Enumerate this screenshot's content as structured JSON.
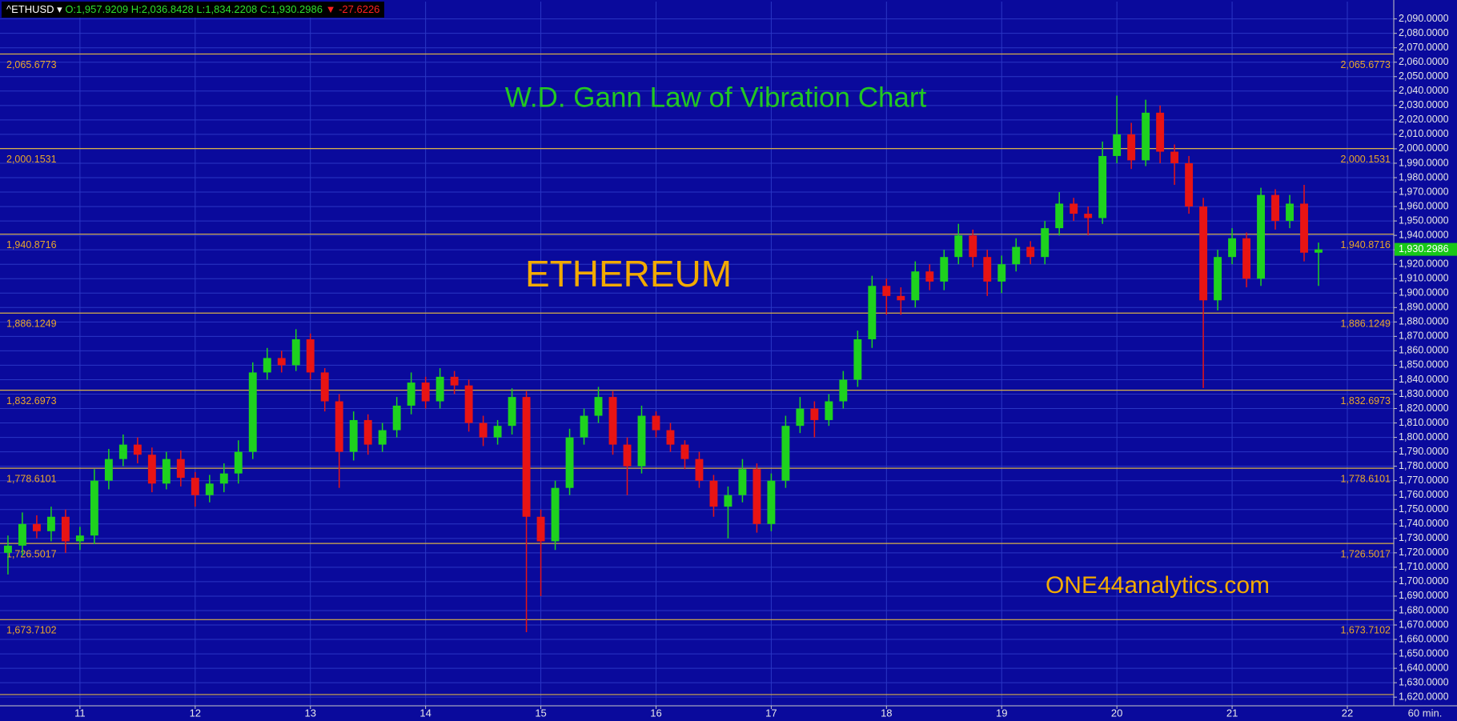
{
  "chart_data": {
    "type": "candlestick",
    "header": {
      "symbol": "^ETHUSD",
      "ohlc": "O:1,957.9209 H:2,036.8428 L:1,834.2208 C:1,930.2986",
      "change": -27.6226
    },
    "title": "W.D. Gann Law of Vibration Chart",
    "subtitle": "ETHEREUM",
    "annotation": "ONE44analytics.com",
    "interval": "60 min.",
    "up_color": "#1ed21e",
    "down_color": "#e81414",
    "grid": true,
    "xlim": [
      10.306,
      22.403
    ],
    "xticks": [
      11,
      12,
      13,
      14,
      15,
      16,
      17,
      18,
      19,
      20,
      21,
      22
    ],
    "ylim": [
      1614,
      2102
    ],
    "yticks": [
      {
        "value": 1620,
        "label": "1,620.0000"
      },
      {
        "value": 1630,
        "label": "1,630.0000"
      },
      {
        "value": 1640,
        "label": "1,640.0000"
      },
      {
        "value": 1650,
        "label": "1,650.0000"
      },
      {
        "value": 1660,
        "label": "1,660.0000"
      },
      {
        "value": 1670,
        "label": "1,670.0000"
      },
      {
        "value": 1680,
        "label": "1,680.0000"
      },
      {
        "value": 1690,
        "label": "1,690.0000"
      },
      {
        "value": 1700,
        "label": "1,700.0000"
      },
      {
        "value": 1710,
        "label": "1,710.0000"
      },
      {
        "value": 1720,
        "label": "1,720.0000"
      },
      {
        "value": 1730,
        "label": "1,730.0000"
      },
      {
        "value": 1740,
        "label": "1,740.0000"
      },
      {
        "value": 1750,
        "label": "1,750.0000"
      },
      {
        "value": 1760,
        "label": "1,760.0000"
      },
      {
        "value": 1770,
        "label": "1,770.0000"
      },
      {
        "value": 1780,
        "label": "1,780.0000"
      },
      {
        "value": 1790,
        "label": "1,790.0000"
      },
      {
        "value": 1800,
        "label": "1,800.0000"
      },
      {
        "value": 1810,
        "label": "1,810.0000"
      },
      {
        "value": 1820,
        "label": "1,820.0000"
      },
      {
        "value": 1830,
        "label": "1,830.0000"
      },
      {
        "value": 1840,
        "label": "1,840.0000"
      },
      {
        "value": 1850,
        "label": "1,850.0000"
      },
      {
        "value": 1860,
        "label": "1,860.0000"
      },
      {
        "value": 1870,
        "label": "1,870.0000"
      },
      {
        "value": 1880,
        "label": "1,880.0000"
      },
      {
        "value": 1890,
        "label": "1,890.0000"
      },
      {
        "value": 1900,
        "label": "1,900.0000"
      },
      {
        "value": 1910,
        "label": "1,910.0000"
      },
      {
        "value": 1920,
        "label": "1,920.0000"
      },
      {
        "value": 1930,
        "label": "1,930.0000"
      },
      {
        "value": 1940,
        "label": "1,940.0000"
      },
      {
        "value": 1950,
        "label": "1,950.0000"
      },
      {
        "value": 1960,
        "label": "1,960.0000"
      },
      {
        "value": 1970,
        "label": "1,970.0000"
      },
      {
        "value": 1980,
        "label": "1,980.0000"
      },
      {
        "value": 1990,
        "label": "1,990.0000"
      },
      {
        "value": 2000,
        "label": "2,000.0000"
      },
      {
        "value": 2010,
        "label": "2,010.0000"
      },
      {
        "value": 2020,
        "label": "2,020.0000"
      },
      {
        "value": 2030,
        "label": "2,030.0000"
      },
      {
        "value": 2040,
        "label": "2,040.0000"
      },
      {
        "value": 2050,
        "label": "2,050.0000"
      },
      {
        "value": 2060,
        "label": "2,060.0000"
      },
      {
        "value": 2070,
        "label": "2,070.0000"
      },
      {
        "value": 2080,
        "label": "2,080.0000"
      },
      {
        "value": 2090,
        "label": "2,090.0000"
      }
    ],
    "levels": [
      {
        "value": 2065.6773,
        "label": "2,065.6773"
      },
      {
        "value": 2000.1531,
        "label": "2,000.1531"
      },
      {
        "value": 1940.8716,
        "label": "1,940.8716"
      },
      {
        "value": 1886.1249,
        "label": "1,886.1249"
      },
      {
        "value": 1832.6973,
        "label": "1,832.6973"
      },
      {
        "value": 1778.6101,
        "label": "1,778.6101"
      },
      {
        "value": 1726.5017,
        "label": "1,726.5017"
      },
      {
        "value": 1673.7102,
        "label": "1,673.7102"
      },
      {
        "value": 1621.8
      }
    ],
    "level_color": "#d8b048",
    "last_price": {
      "value": 1930.2986,
      "label": "1,930.2986"
    },
    "x": [
      10.375,
      10.5,
      10.625,
      10.75,
      10.875,
      11,
      11.125,
      11.25,
      11.375,
      11.5,
      11.625,
      11.75,
      11.875,
      12,
      12.125,
      12.25,
      12.375,
      12.5,
      12.625,
      12.75,
      12.875,
      13,
      13.125,
      13.25,
      13.375,
      13.5,
      13.625,
      13.75,
      13.875,
      14,
      14.125,
      14.25,
      14.375,
      14.5,
      14.625,
      14.75,
      14.875,
      15,
      15.125,
      15.25,
      15.375,
      15.5,
      15.625,
      15.75,
      15.875,
      16,
      16.125,
      16.25,
      16.375,
      16.5,
      16.625,
      16.75,
      16.875,
      17,
      17.125,
      17.25,
      17.375,
      17.5,
      17.625,
      17.75,
      17.875,
      18,
      18.125,
      18.25,
      18.375,
      18.5,
      18.625,
      18.75,
      18.875,
      19,
      19.125,
      19.25,
      19.375,
      19.5,
      19.625,
      19.75,
      19.875,
      20,
      20.125,
      20.25,
      20.375,
      20.5,
      20.625,
      20.75,
      20.875,
      21,
      21.125,
      21.25,
      21.375,
      21.5,
      21.625,
      21.75
    ],
    "open": [
      1720,
      1725,
      1740,
      1735,
      1745,
      1728,
      1732,
      1770,
      1785,
      1795,
      1788,
      1768,
      1785,
      1772,
      1760,
      1768,
      1775,
      1790,
      1845,
      1855,
      1850,
      1868,
      1845,
      1825,
      1790,
      1812,
      1795,
      1805,
      1822,
      1838,
      1825,
      1842,
      1836,
      1810,
      1800,
      1808,
      1828,
      1745,
      1728,
      1765,
      1800,
      1815,
      1828,
      1795,
      1780,
      1815,
      1805,
      1795,
      1785,
      1770,
      1752,
      1760,
      1778,
      1740,
      1770,
      1808,
      1820,
      1812,
      1825,
      1840,
      1868,
      1905,
      1898,
      1895,
      1915,
      1908,
      1925,
      1940,
      1925,
      1908,
      1920,
      1932,
      1925,
      1945,
      1962,
      1955,
      1952,
      1995,
      2010,
      1992,
      2025,
      1998,
      1990,
      1960,
      1895,
      1925,
      1938,
      1910,
      1968,
      1950,
      1962,
      1928
    ],
    "high": [
      1732,
      1748,
      1746,
      1752,
      1750,
      1738,
      1778,
      1792,
      1802,
      1800,
      1793,
      1790,
      1791,
      1776,
      1774,
      1782,
      1798,
      1852,
      1862,
      1860,
      1875,
      1872,
      1848,
      1830,
      1818,
      1816,
      1810,
      1828,
      1845,
      1842,
      1848,
      1846,
      1840,
      1815,
      1812,
      1834,
      1832,
      1750,
      1770,
      1806,
      1820,
      1835,
      1832,
      1800,
      1822,
      1818,
      1810,
      1798,
      1790,
      1774,
      1766,
      1785,
      1782,
      1775,
      1815,
      1828,
      1825,
      1830,
      1846,
      1874,
      1912,
      1910,
      1904,
      1922,
      1920,
      1930,
      1948,
      1944,
      1930,
      1926,
      1938,
      1936,
      1950,
      1970,
      1966,
      1960,
      2005,
      2036.8428,
      2018,
      2034,
      2030,
      2003,
      1995,
      1966,
      1930,
      1945,
      1942,
      1973,
      1972,
      1968,
      1975,
      1935
    ],
    "low": [
      1705,
      1718,
      1730,
      1728,
      1720,
      1722,
      1726,
      1764,
      1780,
      1782,
      1762,
      1764,
      1766,
      1752,
      1755,
      1762,
      1768,
      1785,
      1840,
      1845,
      1846,
      1840,
      1818,
      1765,
      1784,
      1788,
      1790,
      1800,
      1816,
      1820,
      1820,
      1830,
      1804,
      1794,
      1795,
      1802,
      1665,
      1690,
      1722,
      1760,
      1795,
      1810,
      1788,
      1760,
      1775,
      1800,
      1790,
      1778,
      1765,
      1745,
      1730,
      1755,
      1734,
      1735,
      1765,
      1803,
      1800,
      1808,
      1820,
      1835,
      1862,
      1885,
      1885,
      1890,
      1902,
      1902,
      1920,
      1918,
      1898,
      1900,
      1915,
      1920,
      1920,
      1940,
      1950,
      1940,
      1948,
      1990,
      1986,
      1988,
      1990,
      1975,
      1955,
      1834.2208,
      1888,
      1920,
      1904,
      1905,
      1944,
      1945,
      1922,
      1905
    ],
    "close": [
      1725,
      1740,
      1735,
      1745,
      1728,
      1732,
      1770,
      1785,
      1795,
      1788,
      1768,
      1785,
      1772,
      1760,
      1768,
      1775,
      1790,
      1845,
      1855,
      1850,
      1868,
      1845,
      1825,
      1790,
      1812,
      1795,
      1805,
      1822,
      1838,
      1825,
      1842,
      1836,
      1810,
      1800,
      1808,
      1828,
      1745,
      1728,
      1765,
      1800,
      1815,
      1828,
      1795,
      1780,
      1815,
      1805,
      1795,
      1785,
      1770,
      1752,
      1760,
      1778,
      1740,
      1770,
      1808,
      1820,
      1812,
      1825,
      1840,
      1868,
      1905,
      1898,
      1895,
      1915,
      1908,
      1925,
      1940,
      1925,
      1908,
      1920,
      1932,
      1925,
      1945,
      1962,
      1955,
      1952,
      1995,
      2010,
      1992,
      2025,
      1998,
      1990,
      1960,
      1895,
      1925,
      1938,
      1910,
      1968,
      1950,
      1962,
      1928,
      1930.2986
    ]
  }
}
